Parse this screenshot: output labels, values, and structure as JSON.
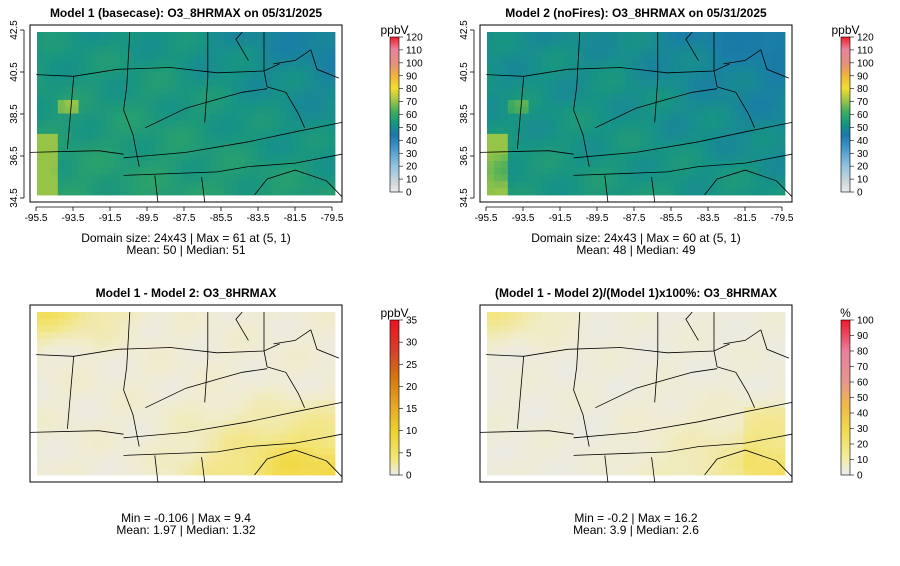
{
  "panels": [
    {
      "id": "p1",
      "title": "Model 1 (basecase): O3_8HRMAX on 05/31/2025",
      "colorbar": {
        "unit": "ppbV",
        "ticks": [
          "0",
          "10",
          "20",
          "30",
          "40",
          "50",
          "60",
          "70",
          "80",
          "90",
          "100",
          "110",
          "120"
        ],
        "min": 0,
        "max": 120
      },
      "axes": {
        "x_ticks": [
          "-95.5",
          "-93.5",
          "-91.5",
          "-89.5",
          "-87.5",
          "-85.5",
          "-83.5",
          "-81.5",
          "-79.5"
        ],
        "y_ticks": [
          "34.5",
          "36.5",
          "38.5",
          "40.5",
          "42.5"
        ]
      },
      "stats": [
        "Domain size: 24x43 | Max = 61 at (5, 1)",
        "Mean: 50 |  Median: 51"
      ]
    },
    {
      "id": "p2",
      "title": "Model 2 (noFires): O3_8HRMAX on 05/31/2025",
      "colorbar": {
        "unit": "ppbV",
        "ticks": [
          "0",
          "10",
          "20",
          "30",
          "40",
          "50",
          "60",
          "70",
          "80",
          "90",
          "100",
          "110",
          "120"
        ],
        "min": 0,
        "max": 120
      },
      "axes": {
        "x_ticks": [
          "-95.5",
          "-93.5",
          "-91.5",
          "-89.5",
          "-87.5",
          "-85.5",
          "-83.5",
          "-81.5",
          "-79.5"
        ],
        "y_ticks": [
          "34.5",
          "36.5",
          "38.5",
          "40.5",
          "42.5"
        ]
      },
      "stats": [
        "Domain size: 24x43 | Max = 60 at (5, 1)",
        "Mean: 48 |  Median: 49"
      ]
    },
    {
      "id": "p3",
      "title": "Model 1 - Model 2: O3_8HRMAX",
      "colorbar": {
        "unit": "ppbV",
        "ticks": [
          "0",
          "5",
          "10",
          "15",
          "20",
          "25",
          "30",
          "35"
        ],
        "min": 0,
        "max": 35
      },
      "stats": [
        "Min = -0.106 | Max = 9.4",
        "Mean: 1.97 |  Median: 1.32"
      ]
    },
    {
      "id": "p4",
      "title": "(Model 1 - Model 2)/(Model 1)x100%: O3_8HRMAX",
      "colorbar": {
        "unit": "%",
        "ticks": [
          "0",
          "10",
          "20",
          "30",
          "40",
          "50",
          "60",
          "70",
          "80",
          "90",
          "100"
        ],
        "min": 0,
        "max": 100
      },
      "stats": [
        "Min = -0.2 | Max = 16.2",
        "Mean: 3.9 |  Median: 2.6"
      ]
    }
  ]
}
